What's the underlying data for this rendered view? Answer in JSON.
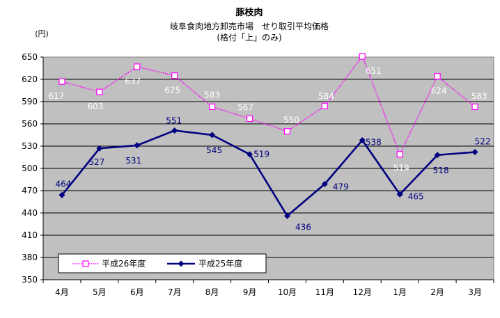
{
  "chart_data": {
    "type": "line",
    "title": "豚枝肉",
    "subtitle_lines": [
      "岐阜食肉地方卸売市場　せり取引平均価格",
      "(格付「上」のみ)"
    ],
    "ylabel": "(円)",
    "xlabel": "",
    "categories": [
      "4月",
      "5月",
      "6月",
      "7月",
      "8月",
      "9月",
      "10月",
      "11月",
      "12月",
      "1月",
      "2月",
      "3月"
    ],
    "ylim": [
      350,
      650
    ],
    "ytick_step": 30,
    "grid": true,
    "legend_position": "bottom-left",
    "series": [
      {
        "name": "平成26年度",
        "values": [
          617,
          603,
          637,
          625,
          583,
          567,
          550,
          584,
          651,
          519,
          624,
          583
        ],
        "color": "#ff00ff",
        "marker": "open-square",
        "line_style": "dotted"
      },
      {
        "name": "平成25年度",
        "values": [
          464,
          527,
          531,
          551,
          545,
          519,
          436,
          479,
          538,
          465,
          518,
          522
        ],
        "color": "#000080",
        "marker": "diamond",
        "line_style": "solid"
      }
    ]
  },
  "colors": {
    "plot_background": "#c0c0c0",
    "gridline": "#000000"
  }
}
